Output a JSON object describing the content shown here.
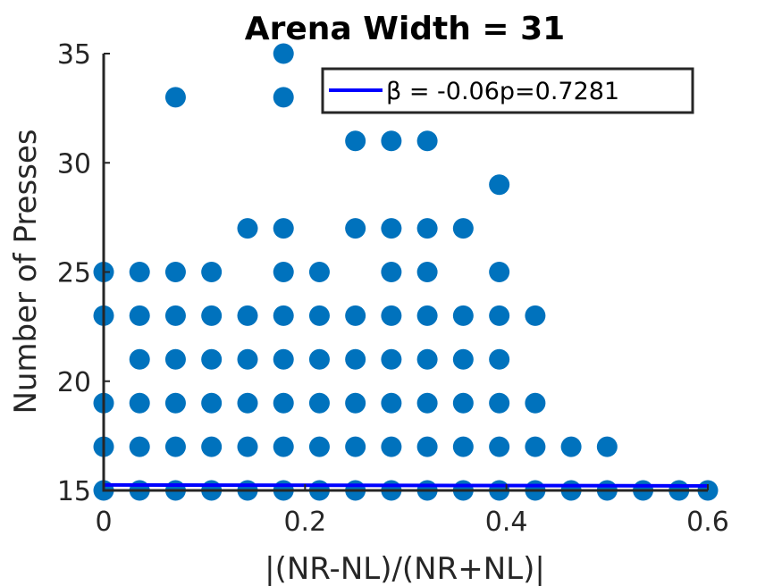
{
  "chart_data": {
    "type": "scatter",
    "title": "Arena Width =  31",
    "xlabel": "|(NR-NL)/(NR+NL)|",
    "ylabel": "Number of Presses",
    "xlim": [
      0,
      0.6
    ],
    "ylim": [
      15,
      35
    ],
    "xticks": [
      "0",
      "0.2",
      "0.4",
      "0.6"
    ],
    "yticks": [
      "15",
      "20",
      "25",
      "30",
      "35"
    ],
    "grid": false,
    "legend": {
      "placement": "top-right",
      "label": "β =  -0.06p=0.7281",
      "symbol": "β"
    },
    "colors": {
      "points": "#0072BD",
      "fit_line": "#0000FF",
      "axes": "#262626"
    },
    "fit_line": {
      "x": [
        0,
        0.6
      ],
      "y": [
        15.25,
        15.21
      ]
    },
    "series": [
      {
        "points": [
          [
            0,
            15
          ],
          [
            0,
            17
          ],
          [
            0,
            19
          ],
          [
            0,
            23
          ],
          [
            0,
            25
          ],
          [
            0.0357,
            15
          ],
          [
            0.0357,
            17
          ],
          [
            0.0357,
            19
          ],
          [
            0.0357,
            21
          ],
          [
            0.0357,
            23
          ],
          [
            0.0357,
            25
          ],
          [
            0.0714,
            15
          ],
          [
            0.0714,
            17
          ],
          [
            0.0714,
            19
          ],
          [
            0.0714,
            21
          ],
          [
            0.0714,
            23
          ],
          [
            0.0714,
            25
          ],
          [
            0.0714,
            33
          ],
          [
            0.1071,
            15
          ],
          [
            0.1071,
            17
          ],
          [
            0.1071,
            19
          ],
          [
            0.1071,
            21
          ],
          [
            0.1071,
            23
          ],
          [
            0.1071,
            25
          ],
          [
            0.1429,
            15
          ],
          [
            0.1429,
            17
          ],
          [
            0.1429,
            19
          ],
          [
            0.1429,
            21
          ],
          [
            0.1429,
            23
          ],
          [
            0.1429,
            27
          ],
          [
            0.1786,
            15
          ],
          [
            0.1786,
            17
          ],
          [
            0.1786,
            19
          ],
          [
            0.1786,
            21
          ],
          [
            0.1786,
            23
          ],
          [
            0.1786,
            25
          ],
          [
            0.1786,
            27
          ],
          [
            0.1786,
            33
          ],
          [
            0.1786,
            35
          ],
          [
            0.2143,
            15
          ],
          [
            0.2143,
            17
          ],
          [
            0.2143,
            19
          ],
          [
            0.2143,
            21
          ],
          [
            0.2143,
            23
          ],
          [
            0.2143,
            25
          ],
          [
            0.25,
            15
          ],
          [
            0.25,
            17
          ],
          [
            0.25,
            19
          ],
          [
            0.25,
            21
          ],
          [
            0.25,
            23
          ],
          [
            0.25,
            27
          ],
          [
            0.25,
            31
          ],
          [
            0.2857,
            15
          ],
          [
            0.2857,
            17
          ],
          [
            0.2857,
            19
          ],
          [
            0.2857,
            21
          ],
          [
            0.2857,
            23
          ],
          [
            0.2857,
            25
          ],
          [
            0.2857,
            27
          ],
          [
            0.2857,
            31
          ],
          [
            0.3214,
            15
          ],
          [
            0.3214,
            17
          ],
          [
            0.3214,
            19
          ],
          [
            0.3214,
            21
          ],
          [
            0.3214,
            23
          ],
          [
            0.3214,
            25
          ],
          [
            0.3214,
            27
          ],
          [
            0.3214,
            31
          ],
          [
            0.3571,
            15
          ],
          [
            0.3571,
            17
          ],
          [
            0.3571,
            19
          ],
          [
            0.3571,
            21
          ],
          [
            0.3571,
            23
          ],
          [
            0.3571,
            27
          ],
          [
            0.3929,
            15
          ],
          [
            0.3929,
            17
          ],
          [
            0.3929,
            19
          ],
          [
            0.3929,
            21
          ],
          [
            0.3929,
            23
          ],
          [
            0.3929,
            25
          ],
          [
            0.3929,
            29
          ],
          [
            0.4286,
            15
          ],
          [
            0.4286,
            17
          ],
          [
            0.4286,
            19
          ],
          [
            0.4286,
            23
          ],
          [
            0.4643,
            15
          ],
          [
            0.4643,
            17
          ],
          [
            0.5,
            15
          ],
          [
            0.5,
            17
          ],
          [
            0.5357,
            15
          ],
          [
            0.5714,
            15
          ],
          [
            0.6,
            15
          ]
        ]
      }
    ]
  }
}
